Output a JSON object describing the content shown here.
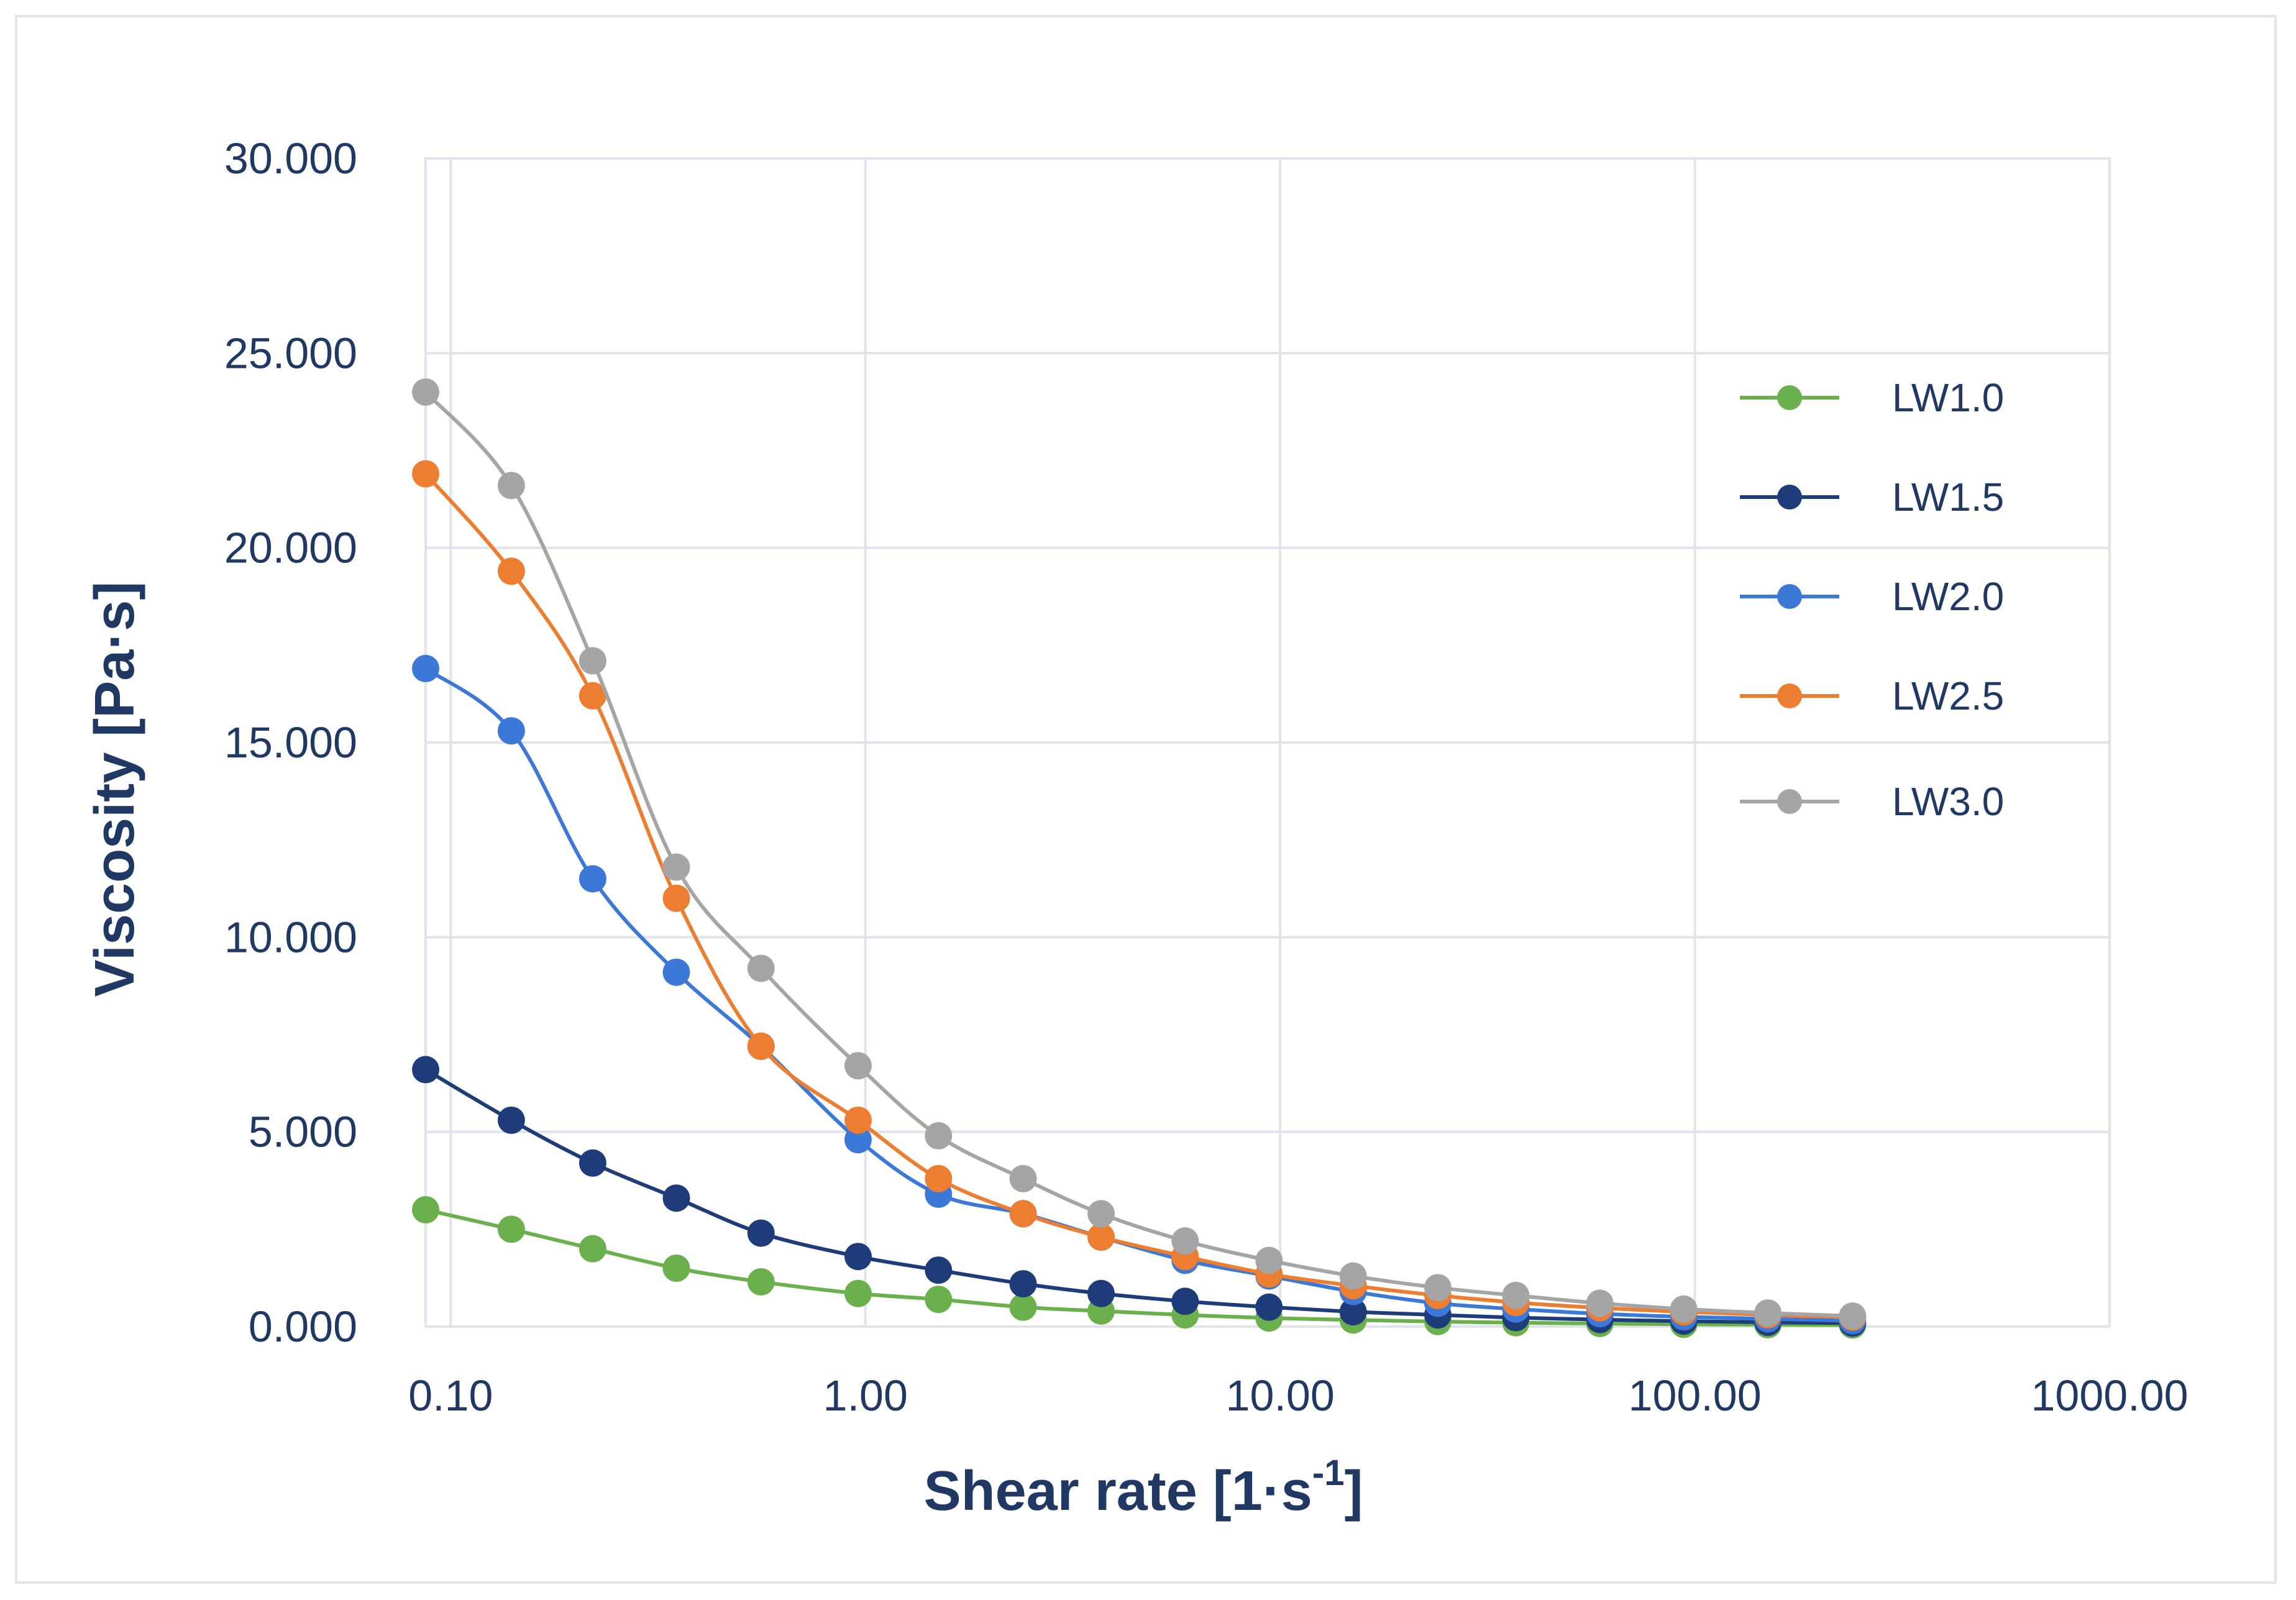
{
  "chart_data": {
    "type": "line",
    "title": "",
    "xlabel": "Shear rate [1·s",
    "xlabel_sup": "-1",
    "xlabel_close": "]",
    "ylabel": "Viscosity [Pa·s]",
    "xscale": "log",
    "xlim": [
      0.087,
      1000
    ],
    "ylim": [
      0,
      30
    ],
    "grid": true,
    "legend_position": "right",
    "x_ticks": [
      {
        "value": 0.1,
        "label": "0.10"
      },
      {
        "value": 1,
        "label": "1.00"
      },
      {
        "value": 10,
        "label": "10.00"
      },
      {
        "value": 100,
        "label": "100.00"
      },
      {
        "value": 1000,
        "label": "1000.00"
      }
    ],
    "y_ticks": [
      {
        "value": 0,
        "label": "0.000"
      },
      {
        "value": 5,
        "label": "5.000"
      },
      {
        "value": 10,
        "label": "10.000"
      },
      {
        "value": 15,
        "label": "15.000"
      },
      {
        "value": 20,
        "label": "20.000"
      },
      {
        "value": 25,
        "label": "25.000"
      },
      {
        "value": 30,
        "label": "30.000"
      }
    ],
    "x": [
      0.087,
      0.14,
      0.22,
      0.35,
      0.56,
      0.96,
      1.5,
      2.4,
      3.7,
      5.9,
      9.4,
      15,
      24,
      37,
      59,
      94,
      150,
      240
    ],
    "series": [
      {
        "name": "LW1.0",
        "color": "#6ab04c",
        "values": [
          3.0,
          2.5,
          2.0,
          1.5,
          1.15,
          0.85,
          0.7,
          0.5,
          0.4,
          0.3,
          0.22,
          0.17,
          0.13,
          0.1,
          0.08,
          0.06,
          0.05,
          0.04
        ]
      },
      {
        "name": "LW1.5",
        "color": "#1f3c7a",
        "values": [
          6.6,
          5.3,
          4.2,
          3.3,
          2.4,
          1.8,
          1.45,
          1.1,
          0.85,
          0.65,
          0.5,
          0.38,
          0.3,
          0.23,
          0.18,
          0.14,
          0.11,
          0.09
        ]
      },
      {
        "name": "LW2.0",
        "color": "#3c78d8",
        "values": [
          16.9,
          15.3,
          11.5,
          9.1,
          7.2,
          4.8,
          3.4,
          2.9,
          2.3,
          1.7,
          1.3,
          0.9,
          0.6,
          0.45,
          0.33,
          0.25,
          0.2,
          0.15
        ]
      },
      {
        "name": "LW2.5",
        "color": "#ed7d31",
        "values": [
          21.9,
          19.4,
          16.2,
          11.0,
          7.2,
          5.3,
          3.8,
          2.9,
          2.3,
          1.8,
          1.35,
          1.05,
          0.8,
          0.62,
          0.48,
          0.38,
          0.3,
          0.24
        ]
      },
      {
        "name": "LW3.0",
        "color": "#a5a5a5",
        "values": [
          24.0,
          21.6,
          17.1,
          11.8,
          9.2,
          6.7,
          4.9,
          3.8,
          2.9,
          2.2,
          1.7,
          1.3,
          1.0,
          0.8,
          0.6,
          0.45,
          0.35,
          0.27
        ]
      }
    ]
  }
}
